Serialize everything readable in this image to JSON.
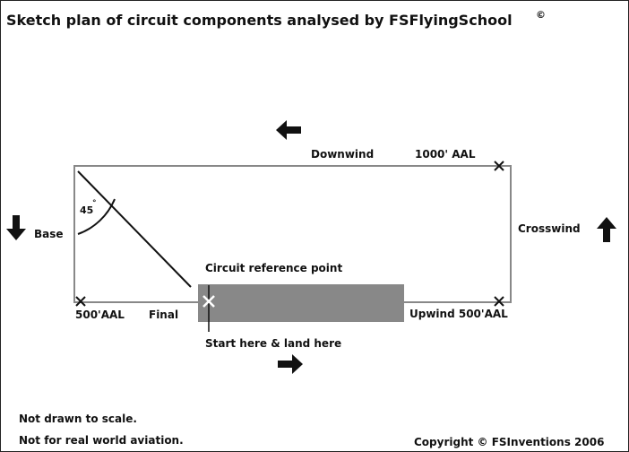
{
  "header": {
    "title": "Sketch plan of circuit components analysed by FSFlyingSchool",
    "title_mark": "©"
  },
  "labels": {
    "downwind": "Downwind",
    "downwind_height": "1000' AAL",
    "base": "Base",
    "angle": "45",
    "degree": "°",
    "crosswind": "Crosswind",
    "reference": "Circuit reference point",
    "final_height": "500'AAL",
    "final": "Final",
    "upwind": "Upwind 500'AAL",
    "start": "Start here & land here"
  },
  "footer": {
    "note1": "Not drawn to scale.",
    "note2": "Not for real world aviation.",
    "copyright": "Copyright © FSInventions 2006"
  }
}
